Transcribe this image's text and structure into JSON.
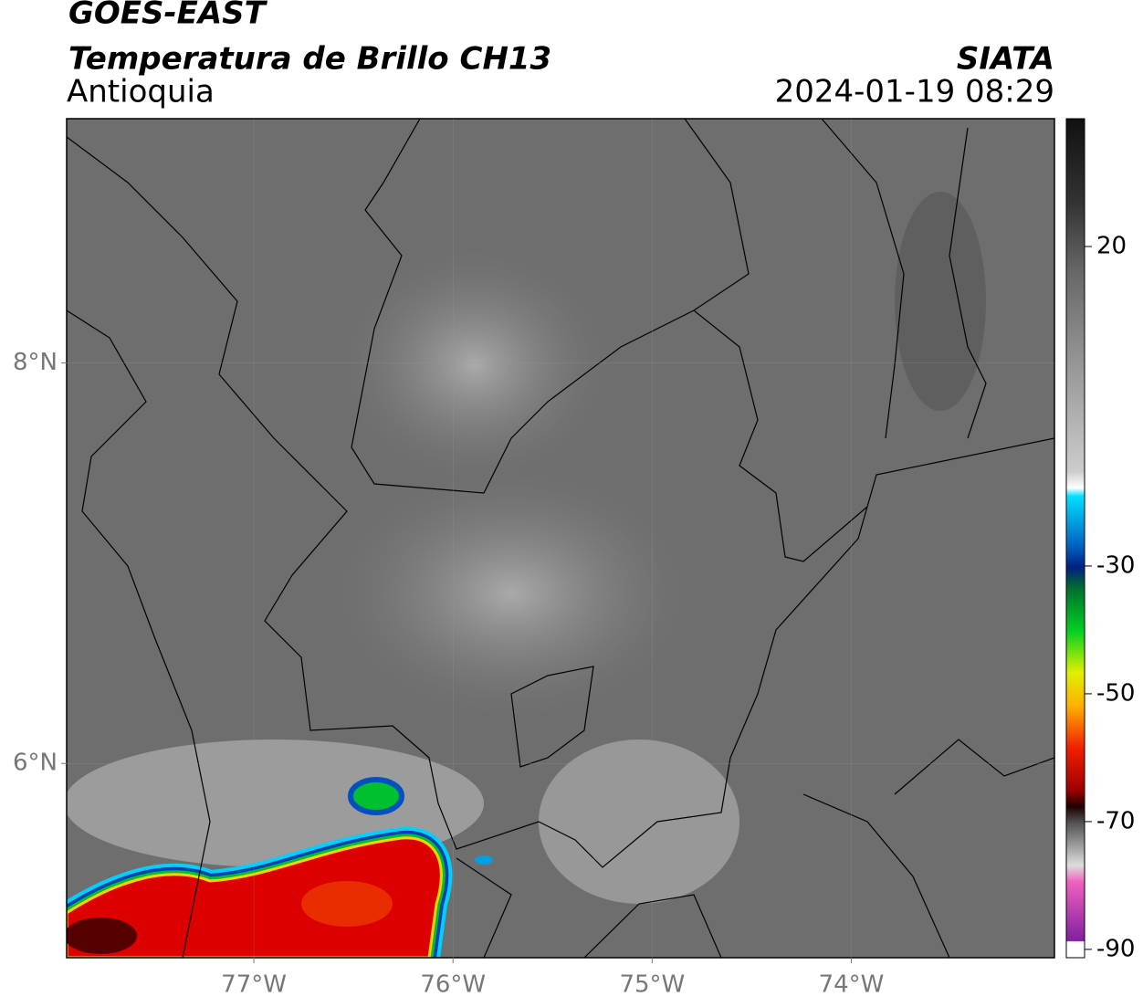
{
  "header": {
    "satellite": "GOES-EAST",
    "product": "Temperatura de Brillo CH13",
    "region": "Antioquia",
    "agency": "SIATA",
    "datetime": "2024-01-19 08:29"
  },
  "map": {
    "xlim": [
      -77.94,
      -72.98
    ],
    "ylim": [
      5.03,
      9.22
    ],
    "xticks": [
      {
        "value": -77,
        "label": "77°W"
      },
      {
        "value": -76,
        "label": "76°W"
      },
      {
        "value": -75,
        "label": "75°W"
      },
      {
        "value": -74,
        "label": "74°W"
      }
    ],
    "yticks": [
      {
        "value": 6,
        "label": "6°N"
      },
      {
        "value": 8,
        "label": "8°N"
      }
    ],
    "grid": true
  },
  "colorbar": {
    "clim": [
      -91.3,
      40
    ],
    "ticks": [
      20,
      -30,
      -50,
      -70,
      -90
    ]
  }
}
